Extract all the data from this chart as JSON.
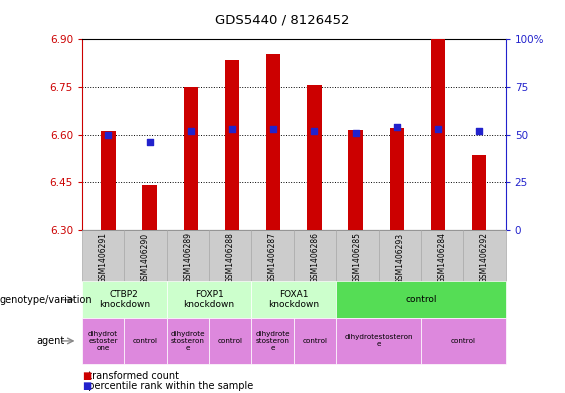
{
  "title": "GDS5440 / 8126452",
  "samples": [
    "GSM1406291",
    "GSM1406290",
    "GSM1406289",
    "GSM1406288",
    "GSM1406287",
    "GSM1406286",
    "GSM1406285",
    "GSM1406293",
    "GSM1406284",
    "GSM1406292"
  ],
  "transformed_count": [
    6.61,
    6.44,
    6.75,
    6.835,
    6.855,
    6.755,
    6.615,
    6.62,
    6.9,
    6.535
  ],
  "percentile_rank": [
    50,
    46,
    52,
    53,
    53,
    52,
    51,
    54,
    53,
    52
  ],
  "ylim": [
    6.3,
    6.9
  ],
  "yticks": [
    6.3,
    6.45,
    6.6,
    6.75,
    6.9
  ],
  "right_yticks": [
    0,
    25,
    50,
    75,
    100
  ],
  "right_ylim": [
    0,
    100
  ],
  "bar_color": "#cc0000",
  "dot_color": "#2222cc",
  "left_axis_color": "#cc0000",
  "right_axis_color": "#2222cc",
  "bg_color": "#ffffff",
  "plot_bg_color": "#ffffff",
  "genotype_groups": [
    {
      "label": "CTBP2\nknockdown",
      "start": 0,
      "end": 2,
      "color": "#ccffcc"
    },
    {
      "label": "FOXP1\nknockdown",
      "start": 2,
      "end": 4,
      "color": "#ccffcc"
    },
    {
      "label": "FOXA1\nknockdown",
      "start": 4,
      "end": 6,
      "color": "#ccffcc"
    },
    {
      "label": "control",
      "start": 6,
      "end": 10,
      "color": "#55dd55"
    }
  ],
  "agent_groups": [
    {
      "label": "dihydrot\nestoster\none",
      "start": 0,
      "end": 1,
      "color": "#dd88dd"
    },
    {
      "label": "control",
      "start": 1,
      "end": 2,
      "color": "#dd88dd"
    },
    {
      "label": "dihydrote\nstosteron\ne",
      "start": 2,
      "end": 3,
      "color": "#dd88dd"
    },
    {
      "label": "control",
      "start": 3,
      "end": 4,
      "color": "#dd88dd"
    },
    {
      "label": "dihydrote\nstosteron\ne",
      "start": 4,
      "end": 5,
      "color": "#dd88dd"
    },
    {
      "label": "control",
      "start": 5,
      "end": 6,
      "color": "#dd88dd"
    },
    {
      "label": "dihydrotestosteron\ne",
      "start": 6,
      "end": 8,
      "color": "#dd88dd"
    },
    {
      "label": "control",
      "start": 8,
      "end": 10,
      "color": "#dd88dd"
    }
  ],
  "legend_transformed": "transformed count",
  "legend_percentile": "percentile rank within the sample",
  "xlabel_genotype": "genotype/variation",
  "xlabel_agent": "agent",
  "bar_width": 0.35,
  "dot_size": 18,
  "sample_bg_color": "#cccccc",
  "sample_border_color": "#aaaaaa"
}
